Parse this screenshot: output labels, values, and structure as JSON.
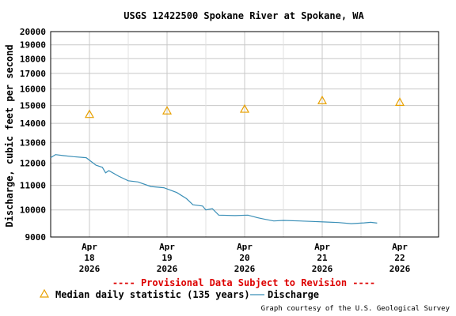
{
  "chart_data": {
    "type": "line",
    "title": "USGS 12422500 Spokane River at Spokane, WA",
    "ylabel": "Discharge, cubic feet per second",
    "xlabel": "",
    "y_scale": "log",
    "ylim": [
      9000,
      20000
    ],
    "xlim": [
      "2026-04-17 12:00",
      "2026-04-22 12:00"
    ],
    "y_ticks": [
      "9000",
      "10000",
      "11000",
      "12000",
      "13000",
      "14000",
      "15000",
      "16000",
      "17000",
      "18000",
      "19000",
      "20000"
    ],
    "x_ticks": [
      {
        "month": "Apr",
        "day": "18",
        "year": "2026"
      },
      {
        "month": "Apr",
        "day": "19",
        "year": "2026"
      },
      {
        "month": "Apr",
        "day": "20",
        "year": "2026"
      },
      {
        "month": "Apr",
        "day": "21",
        "year": "2026"
      },
      {
        "month": "Apr",
        "day": "22",
        "year": "2026"
      }
    ],
    "grid": true,
    "legend_position": "bottom",
    "series": [
      {
        "name": "Median daily statistic (135 years)",
        "marker": "triangle",
        "color": "#e8a000",
        "points": [
          {
            "x": "2026-04-18 00:00",
            "y": 14500
          },
          {
            "x": "2026-04-19 00:00",
            "y": 14700
          },
          {
            "x": "2026-04-20 00:00",
            "y": 14800
          },
          {
            "x": "2026-04-21 00:00",
            "y": 15300
          },
          {
            "x": "2026-04-22 00:00",
            "y": 15200
          }
        ]
      },
      {
        "name": "Discharge",
        "marker": "line",
        "color": "#3a8fb7",
        "points": [
          {
            "x": "2026-04-17 12:00",
            "y": 12250
          },
          {
            "x": "2026-04-17 13:30",
            "y": 12400
          },
          {
            "x": "2026-04-17 16:00",
            "y": 12350
          },
          {
            "x": "2026-04-17 19:00",
            "y": 12300
          },
          {
            "x": "2026-04-17 23:00",
            "y": 12250
          },
          {
            "x": "2026-04-18 02:00",
            "y": 11900
          },
          {
            "x": "2026-04-18 04:00",
            "y": 11800
          },
          {
            "x": "2026-04-18 05:00",
            "y": 11550
          },
          {
            "x": "2026-04-18 06:00",
            "y": 11650
          },
          {
            "x": "2026-04-18 09:00",
            "y": 11400
          },
          {
            "x": "2026-04-18 12:00",
            "y": 11200
          },
          {
            "x": "2026-04-18 15:00",
            "y": 11150
          },
          {
            "x": "2026-04-18 19:00",
            "y": 10950
          },
          {
            "x": "2026-04-18 23:00",
            "y": 10900
          },
          {
            "x": "2026-04-19 03:00",
            "y": 10700
          },
          {
            "x": "2026-04-19 06:00",
            "y": 10450
          },
          {
            "x": "2026-04-19 08:00",
            "y": 10200
          },
          {
            "x": "2026-04-19 11:00",
            "y": 10150
          },
          {
            "x": "2026-04-19 12:00",
            "y": 10000
          },
          {
            "x": "2026-04-19 14:00",
            "y": 10050
          },
          {
            "x": "2026-04-19 16:00",
            "y": 9800
          },
          {
            "x": "2026-04-19 21:00",
            "y": 9780
          },
          {
            "x": "2026-04-20 01:00",
            "y": 9800
          },
          {
            "x": "2026-04-20 04:00",
            "y": 9700
          },
          {
            "x": "2026-04-20 06:00",
            "y": 9650
          },
          {
            "x": "2026-04-20 09:00",
            "y": 9580
          },
          {
            "x": "2026-04-20 12:00",
            "y": 9600
          },
          {
            "x": "2026-04-20 17:00",
            "y": 9580
          },
          {
            "x": "2026-04-20 21:00",
            "y": 9560
          },
          {
            "x": "2026-04-21 01:00",
            "y": 9540
          },
          {
            "x": "2026-04-21 05:00",
            "y": 9520
          },
          {
            "x": "2026-04-21 09:00",
            "y": 9480
          },
          {
            "x": "2026-04-21 13:00",
            "y": 9510
          },
          {
            "x": "2026-04-21 15:00",
            "y": 9530
          },
          {
            "x": "2026-04-21 17:00",
            "y": 9500
          }
        ]
      }
    ],
    "provisional_notice": "---- Provisional Data Subject to Revision ----",
    "credit": "Graph courtesy of the U.S. Geological Survey"
  }
}
